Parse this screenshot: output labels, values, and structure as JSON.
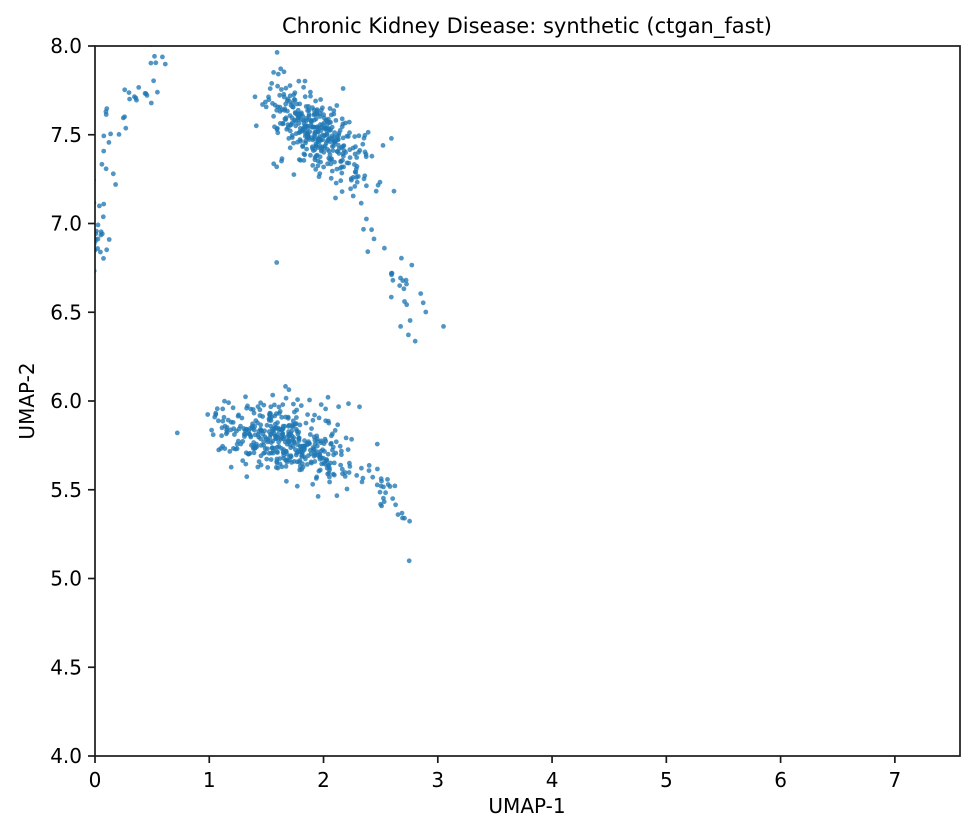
{
  "figure": {
    "background_color": "#ffffff",
    "axis_color": "#1a1a1a",
    "text_color": "#000000"
  },
  "chart_data": {
    "type": "scatter",
    "title": "Chronic Kidney Disease: synthetic (ctgan_fast)",
    "xlabel": "UMAP-1",
    "ylabel": "UMAP-2",
    "xlim": [
      0,
      7.57
    ],
    "ylim": [
      4.0,
      8.0
    ],
    "grid": false,
    "legend": "none",
    "x_ticks": {
      "values": [
        0,
        1,
        2,
        3,
        4,
        5,
        6,
        7
      ],
      "labels": [
        "0",
        "1",
        "2",
        "3",
        "4",
        "5",
        "6",
        "7"
      ]
    },
    "y_ticks": {
      "values": [
        4.0,
        4.5,
        5.0,
        5.5,
        6.0,
        6.5,
        7.0,
        7.5,
        8.0
      ],
      "labels": [
        "4.0",
        "4.5",
        "5.0",
        "5.5",
        "6.0",
        "6.5",
        "7.0",
        "7.5",
        "8.0"
      ]
    },
    "series_name": "synthetic (ctgan_fast)",
    "point_style": {
      "color": "#1f77b4",
      "opacity": 0.78,
      "radius": 2.4
    },
    "seed": 42,
    "clusters": [
      {
        "name": "left-edge-blob",
        "n": 30,
        "x0": 0.03,
        "y0": 6.96,
        "x1": 0.03,
        "y1": 6.96,
        "sx": 0.065,
        "sy": 0.115,
        "tdist": "uniform",
        "ypow": 1
      },
      {
        "name": "upper-left-arc",
        "n": 34,
        "x0": 0.02,
        "y0": 7.41,
        "x1": 0.62,
        "y1": 7.96,
        "sx": 0.05,
        "sy": 0.075,
        "tdist": "uniform",
        "ypow": 1
      },
      {
        "name": "top-main-core",
        "n": 310,
        "x0": 1.56,
        "y0": 7.71,
        "x1": 2.3,
        "y1": 7.33,
        "sx": 0.105,
        "sy": 0.08,
        "tdist": "triangular",
        "ypow": 1
      },
      {
        "name": "top-main-fringe",
        "n": 50,
        "x0": 1.55,
        "y0": 7.66,
        "x1": 2.38,
        "y1": 7.28,
        "sx": 0.18,
        "sy": 0.14,
        "tdist": "uniform",
        "ypow": 1
      },
      {
        "name": "upper-tail-chain",
        "n": 40,
        "x0": 2.3,
        "y0": 7.33,
        "x1": 2.8,
        "y1": 6.4,
        "sx": 0.085,
        "sy": 0.06,
        "tdist": "uniform",
        "ypow": 1
      },
      {
        "name": "lower-main-band",
        "n": 360,
        "x0": 0.93,
        "y0": 5.81,
        "x1": 2.38,
        "y1": 5.55,
        "sx": 0.04,
        "sy": 0.085,
        "tdist": "triangular",
        "ypow": 2.8
      },
      {
        "name": "lower-band-fringe",
        "n": 45,
        "x0": 1.05,
        "y0": 5.88,
        "x1": 2.3,
        "y1": 5.77,
        "sx": 0.1,
        "sy": 0.12,
        "tdist": "uniform",
        "ypow": 1
      },
      {
        "name": "lower-top-bump",
        "n": 12,
        "x0": 1.45,
        "y0": 6.0,
        "x1": 1.9,
        "y1": 5.97,
        "sx": 0.12,
        "sy": 0.045,
        "tdist": "uniform",
        "ypow": 1
      },
      {
        "name": "lower-tail-chain",
        "n": 28,
        "x0": 2.36,
        "y0": 5.6,
        "x1": 2.68,
        "y1": 5.38,
        "sx": 0.06,
        "sy": 0.055,
        "tdist": "uniform",
        "ypow": 1
      }
    ],
    "singles": [
      [
        3.05,
        6.42
      ],
      [
        2.75,
        5.1
      ],
      [
        1.59,
        6.78
      ],
      [
        0.72,
        5.82
      ],
      [
        2.52,
        7.44
      ],
      [
        0.16,
        7.28
      ],
      [
        0.18,
        7.22
      ]
    ]
  }
}
